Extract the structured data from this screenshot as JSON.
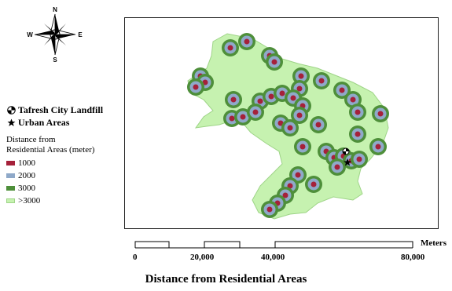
{
  "compass": {
    "n": "N",
    "s": "S",
    "e": "E",
    "w": "W"
  },
  "legend": {
    "landfill_label": "Tafresh City Landfill",
    "urban_label": "Urban Areas",
    "title_line1": "Distance from",
    "title_line2": "Residential Areas (meter)",
    "classes": [
      {
        "label": "1000",
        "color": "#a5213a"
      },
      {
        "label": "2000",
        "color": "#8fa9c9"
      },
      {
        "label": "3000",
        "color": "#4e8f3a"
      },
      {
        "label": ">3000",
        "color": "#c6f2b0"
      }
    ]
  },
  "scale": {
    "unit": "Meters",
    "ticks": [
      "0",
      "20,000",
      "40,000",
      "80,000"
    ]
  },
  "caption": "Distance from Residential Areas"
}
